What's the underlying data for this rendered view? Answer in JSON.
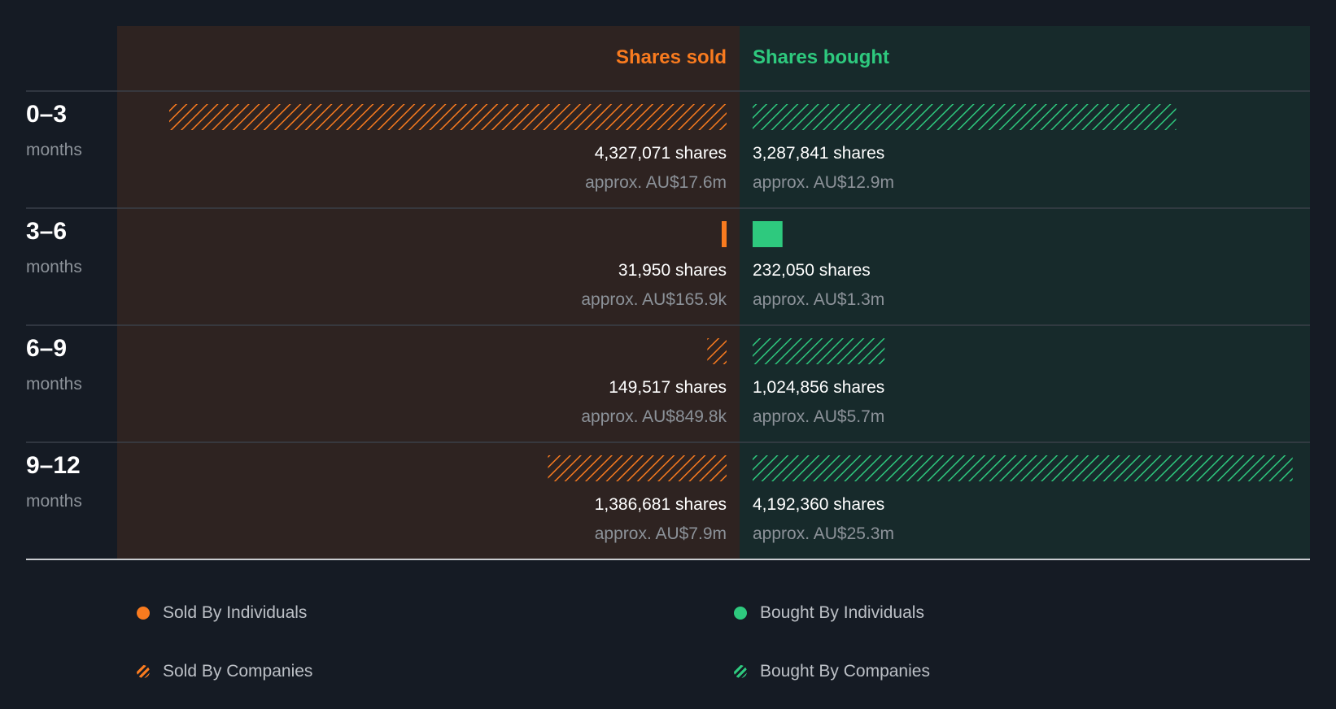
{
  "colors": {
    "background": "#151b24",
    "sold": "#f97b1f",
    "bought": "#2ec97e",
    "sold_panel": "#2e2321",
    "bought_panel": "#172a2b",
    "muted_text": "#8c9299",
    "primary_text": "#ffffff",
    "divider": "#3a4049",
    "baseline": "#c9ccd0"
  },
  "chart_data": {
    "type": "bar",
    "title": "",
    "column_headers": {
      "sold": "Shares sold",
      "bought": "Shares bought"
    },
    "categories": [
      {
        "range": "0–3",
        "unit": "months"
      },
      {
        "range": "3–6",
        "unit": "months"
      },
      {
        "range": "6–9",
        "unit": "months"
      },
      {
        "range": "9–12",
        "unit": "months"
      }
    ],
    "series": [
      {
        "name": "Shares sold",
        "values": [
          4327071,
          31950,
          149517,
          1386681
        ],
        "shares_labels": [
          "4,327,071 shares",
          "31,950 shares",
          "149,517 shares",
          "1,386,681 shares"
        ],
        "value_labels": [
          "approx. AU$17.6m",
          "approx. AU$165.9k",
          "approx. AU$849.8k",
          "approx. AU$7.9m"
        ],
        "pattern": [
          "companies",
          "individuals",
          "companies",
          "companies"
        ]
      },
      {
        "name": "Shares bought",
        "values": [
          3287841,
          232050,
          1024856,
          4192360
        ],
        "shares_labels": [
          "3,287,841 shares",
          "232,050 shares",
          "1,024,856 shares",
          "4,192,360 shares"
        ],
        "value_labels": [
          "approx. AU$12.9m",
          "approx. AU$1.3m",
          "approx. AU$5.7m",
          "approx. AU$25.3m"
        ],
        "pattern": [
          "companies",
          "individuals",
          "companies",
          "companies"
        ]
      }
    ],
    "legend": [
      {
        "label": "Sold By Individuals",
        "icon": "solid-dot",
        "color": "#f97b1f"
      },
      {
        "label": "Bought By Individuals",
        "icon": "solid-dot",
        "color": "#2ec97e"
      },
      {
        "label": "Sold By Companies",
        "icon": "hatched-dot",
        "color": "#f97b1f"
      },
      {
        "label": "Bought By Companies",
        "icon": "hatched-dot",
        "color": "#2ec97e"
      }
    ],
    "legend_position": "bottom"
  }
}
